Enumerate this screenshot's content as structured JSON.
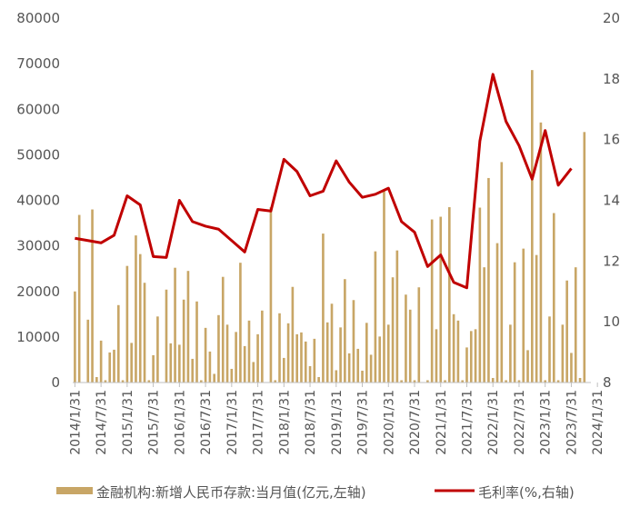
{
  "chart_data": {
    "type": "bar",
    "title": "",
    "colors": {
      "bar": "#C8A666",
      "line": "#C00000",
      "axis": "#BFBFBF",
      "text": "#555555"
    },
    "y_left": {
      "min": 0,
      "max": 80000,
      "ticks": [
        "0",
        "10000",
        "20000",
        "30000",
        "40000",
        "50000",
        "60000",
        "70000",
        "80000"
      ]
    },
    "y_right": {
      "min": 8,
      "max": 20,
      "ticks": [
        "8",
        "10",
        "12",
        "14",
        "16",
        "18",
        "20"
      ]
    },
    "x_start": "2014-01",
    "x_tick_labels": [
      "2014/1/31",
      "2014/7/31",
      "2015/1/31",
      "2015/7/31",
      "2016/1/31",
      "2016/7/31",
      "2017/1/31",
      "2017/7/31",
      "2018/1/31",
      "2018/7/31",
      "2019/1/31",
      "2019/7/31",
      "2020/1/31",
      "2020/7/31",
      "2021/1/31",
      "2021/7/31",
      "2022/1/31",
      "2022/7/31",
      "2023/1/31",
      "2023/7/31",
      "2024/1/31"
    ],
    "series": [
      {
        "name": "金融机构:新增人民币存款:当月值(亿元,左轴)",
        "type": "bar",
        "axis": "left",
        "values": [
          20000,
          36800,
          0,
          13800,
          38000,
          1200,
          9200,
          500,
          6600,
          7200,
          17000,
          500,
          25600,
          8700,
          32300,
          28200,
          21900,
          500,
          6000,
          14500,
          0,
          20400,
          8600,
          25200,
          8300,
          18200,
          24500,
          5200,
          17800,
          500,
          12000,
          6800,
          1900,
          14800,
          23200,
          12700,
          3000,
          11100,
          26300,
          8000,
          13600,
          4500,
          10600,
          15800,
          0,
          38500,
          500,
          15200,
          5400,
          13000,
          21000,
          10600,
          11000,
          9000,
          3600,
          9600,
          1200,
          32700,
          13200,
          17300,
          2700,
          12100,
          22700,
          6400,
          18100,
          7400,
          2600,
          13100,
          6100,
          28800,
          10100,
          42000,
          12700,
          23100,
          29000,
          500,
          19300,
          16000,
          500,
          20900,
          0,
          500,
          35800,
          11700,
          36400,
          500,
          38500,
          15000,
          13600,
          500,
          7700,
          11300,
          11700,
          38400,
          25300,
          44900,
          1000,
          30600,
          48400,
          500,
          12700,
          26400,
          500,
          29400,
          7100,
          68600,
          28000,
          57100,
          500,
          14500,
          37200,
          500,
          12700,
          22400,
          6500,
          25300,
          1000,
          55000
        ]
      },
      {
        "name": "毛利率(%,右轴)",
        "type": "line",
        "axis": "right",
        "values": [
          [
            0,
            12.75
          ],
          [
            6,
            12.6
          ],
          [
            9,
            12.85
          ],
          [
            12,
            14.15
          ],
          [
            15,
            13.85
          ],
          [
            18,
            12.15
          ],
          [
            21,
            12.12
          ],
          [
            24,
            14.0
          ],
          [
            27,
            13.3
          ],
          [
            30,
            13.15
          ],
          [
            33,
            13.05
          ],
          [
            39,
            12.3
          ],
          [
            42,
            13.7
          ],
          [
            45,
            13.65
          ],
          [
            48,
            15.35
          ],
          [
            51,
            14.95
          ],
          [
            54,
            14.15
          ],
          [
            57,
            14.3
          ],
          [
            60,
            15.3
          ],
          [
            63,
            14.6
          ],
          [
            66,
            14.1
          ],
          [
            69,
            14.2
          ],
          [
            72,
            14.4
          ],
          [
            75,
            13.3
          ],
          [
            78,
            12.95
          ],
          [
            81,
            11.82
          ],
          [
            84,
            12.2
          ],
          [
            87,
            11.3
          ],
          [
            90,
            11.12
          ],
          [
            93,
            15.95
          ],
          [
            96,
            18.15
          ],
          [
            99,
            16.6
          ],
          [
            102,
            15.8
          ],
          [
            105,
            14.7
          ],
          [
            108,
            16.3
          ],
          [
            111,
            14.5
          ],
          [
            114,
            15.05
          ]
        ]
      }
    ],
    "legend_position": "bottom",
    "legend": {
      "bar_label": "金融机构:新增人民币存款:当月值(亿元,左轴)",
      "line_label": "毛利率(%,右轴)"
    }
  }
}
